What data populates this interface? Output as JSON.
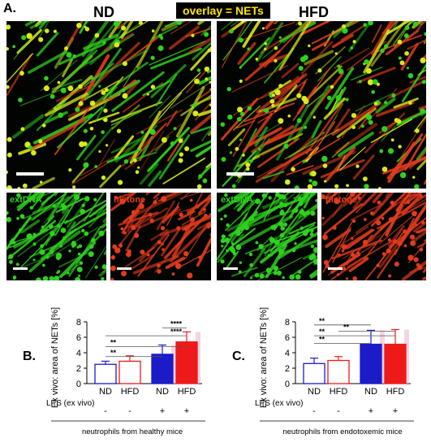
{
  "figure": {
    "panel_a_label": "A.",
    "nd_title": "ND",
    "hfd_title": "HFD",
    "overlay_label": "overlay = NETs",
    "channel_labels": {
      "nd_extdna": "extDNA",
      "nd_histone": "histone",
      "hfd_extdna": "extDNA",
      "hfd_histone": "histone"
    },
    "colors": {
      "dna_green": "#2fd11e",
      "histone_red": "#e23b1c",
      "overlay_yellow": "#d8ea1a",
      "nd_bar": "#1b1bc8",
      "hfd_bar": "#ee1a1a",
      "error_pink": "#e9b3c9"
    }
  },
  "chart_data": [
    {
      "type": "bar",
      "panel_label": "B.",
      "ylabel": "Ex vivo: area of NETs [%]",
      "ylim": [
        0,
        8
      ],
      "yticks": [
        "0",
        "2",
        "4",
        "6",
        "8"
      ],
      "categories": [
        "ND",
        "HFD",
        "ND",
        "HFD"
      ],
      "values": [
        2.5,
        2.9,
        3.8,
        5.4
      ],
      "errors": [
        0.4,
        0.7,
        1.2,
        1.3
      ],
      "filled": [
        false,
        false,
        true,
        true
      ],
      "lps_label": "LPS (ex vivo)",
      "lps_values": [
        "-",
        "-",
        "+",
        "+"
      ],
      "footer": "neutrophils from healthy mice",
      "significance": [
        {
          "from": 0,
          "to": 2,
          "label": "**"
        },
        {
          "from": 0,
          "to": 3,
          "label": "**"
        },
        {
          "from": 2,
          "to": 3,
          "label": "****"
        },
        {
          "from": 0,
          "to": 3,
          "label": "****"
        }
      ]
    },
    {
      "type": "bar",
      "panel_label": "C.",
      "ylabel": "Ex vivo: area of NETs [%]",
      "ylim": [
        0,
        8
      ],
      "yticks": [
        "0",
        "2",
        "4",
        "6",
        "8"
      ],
      "categories": [
        "ND",
        "HFD",
        "ND",
        "HFD"
      ],
      "values": [
        2.6,
        3.0,
        5.1,
        5.1
      ],
      "errors": [
        0.7,
        0.5,
        1.8,
        1.9
      ],
      "filled": [
        false,
        false,
        true,
        true
      ],
      "lps_label": "LPS (ex vivo)",
      "lps_values": [
        "-",
        "-",
        "+",
        "+"
      ],
      "footer": "neutrophils from endotoxemic mice",
      "significance": [
        {
          "from": 0,
          "to": 2,
          "label": "**"
        },
        {
          "from": 0,
          "to": 3,
          "label": "**"
        },
        {
          "from": 0,
          "to": 2,
          "label": "**"
        },
        {
          "from": 1,
          "to": 3,
          "label": "**"
        }
      ]
    }
  ]
}
